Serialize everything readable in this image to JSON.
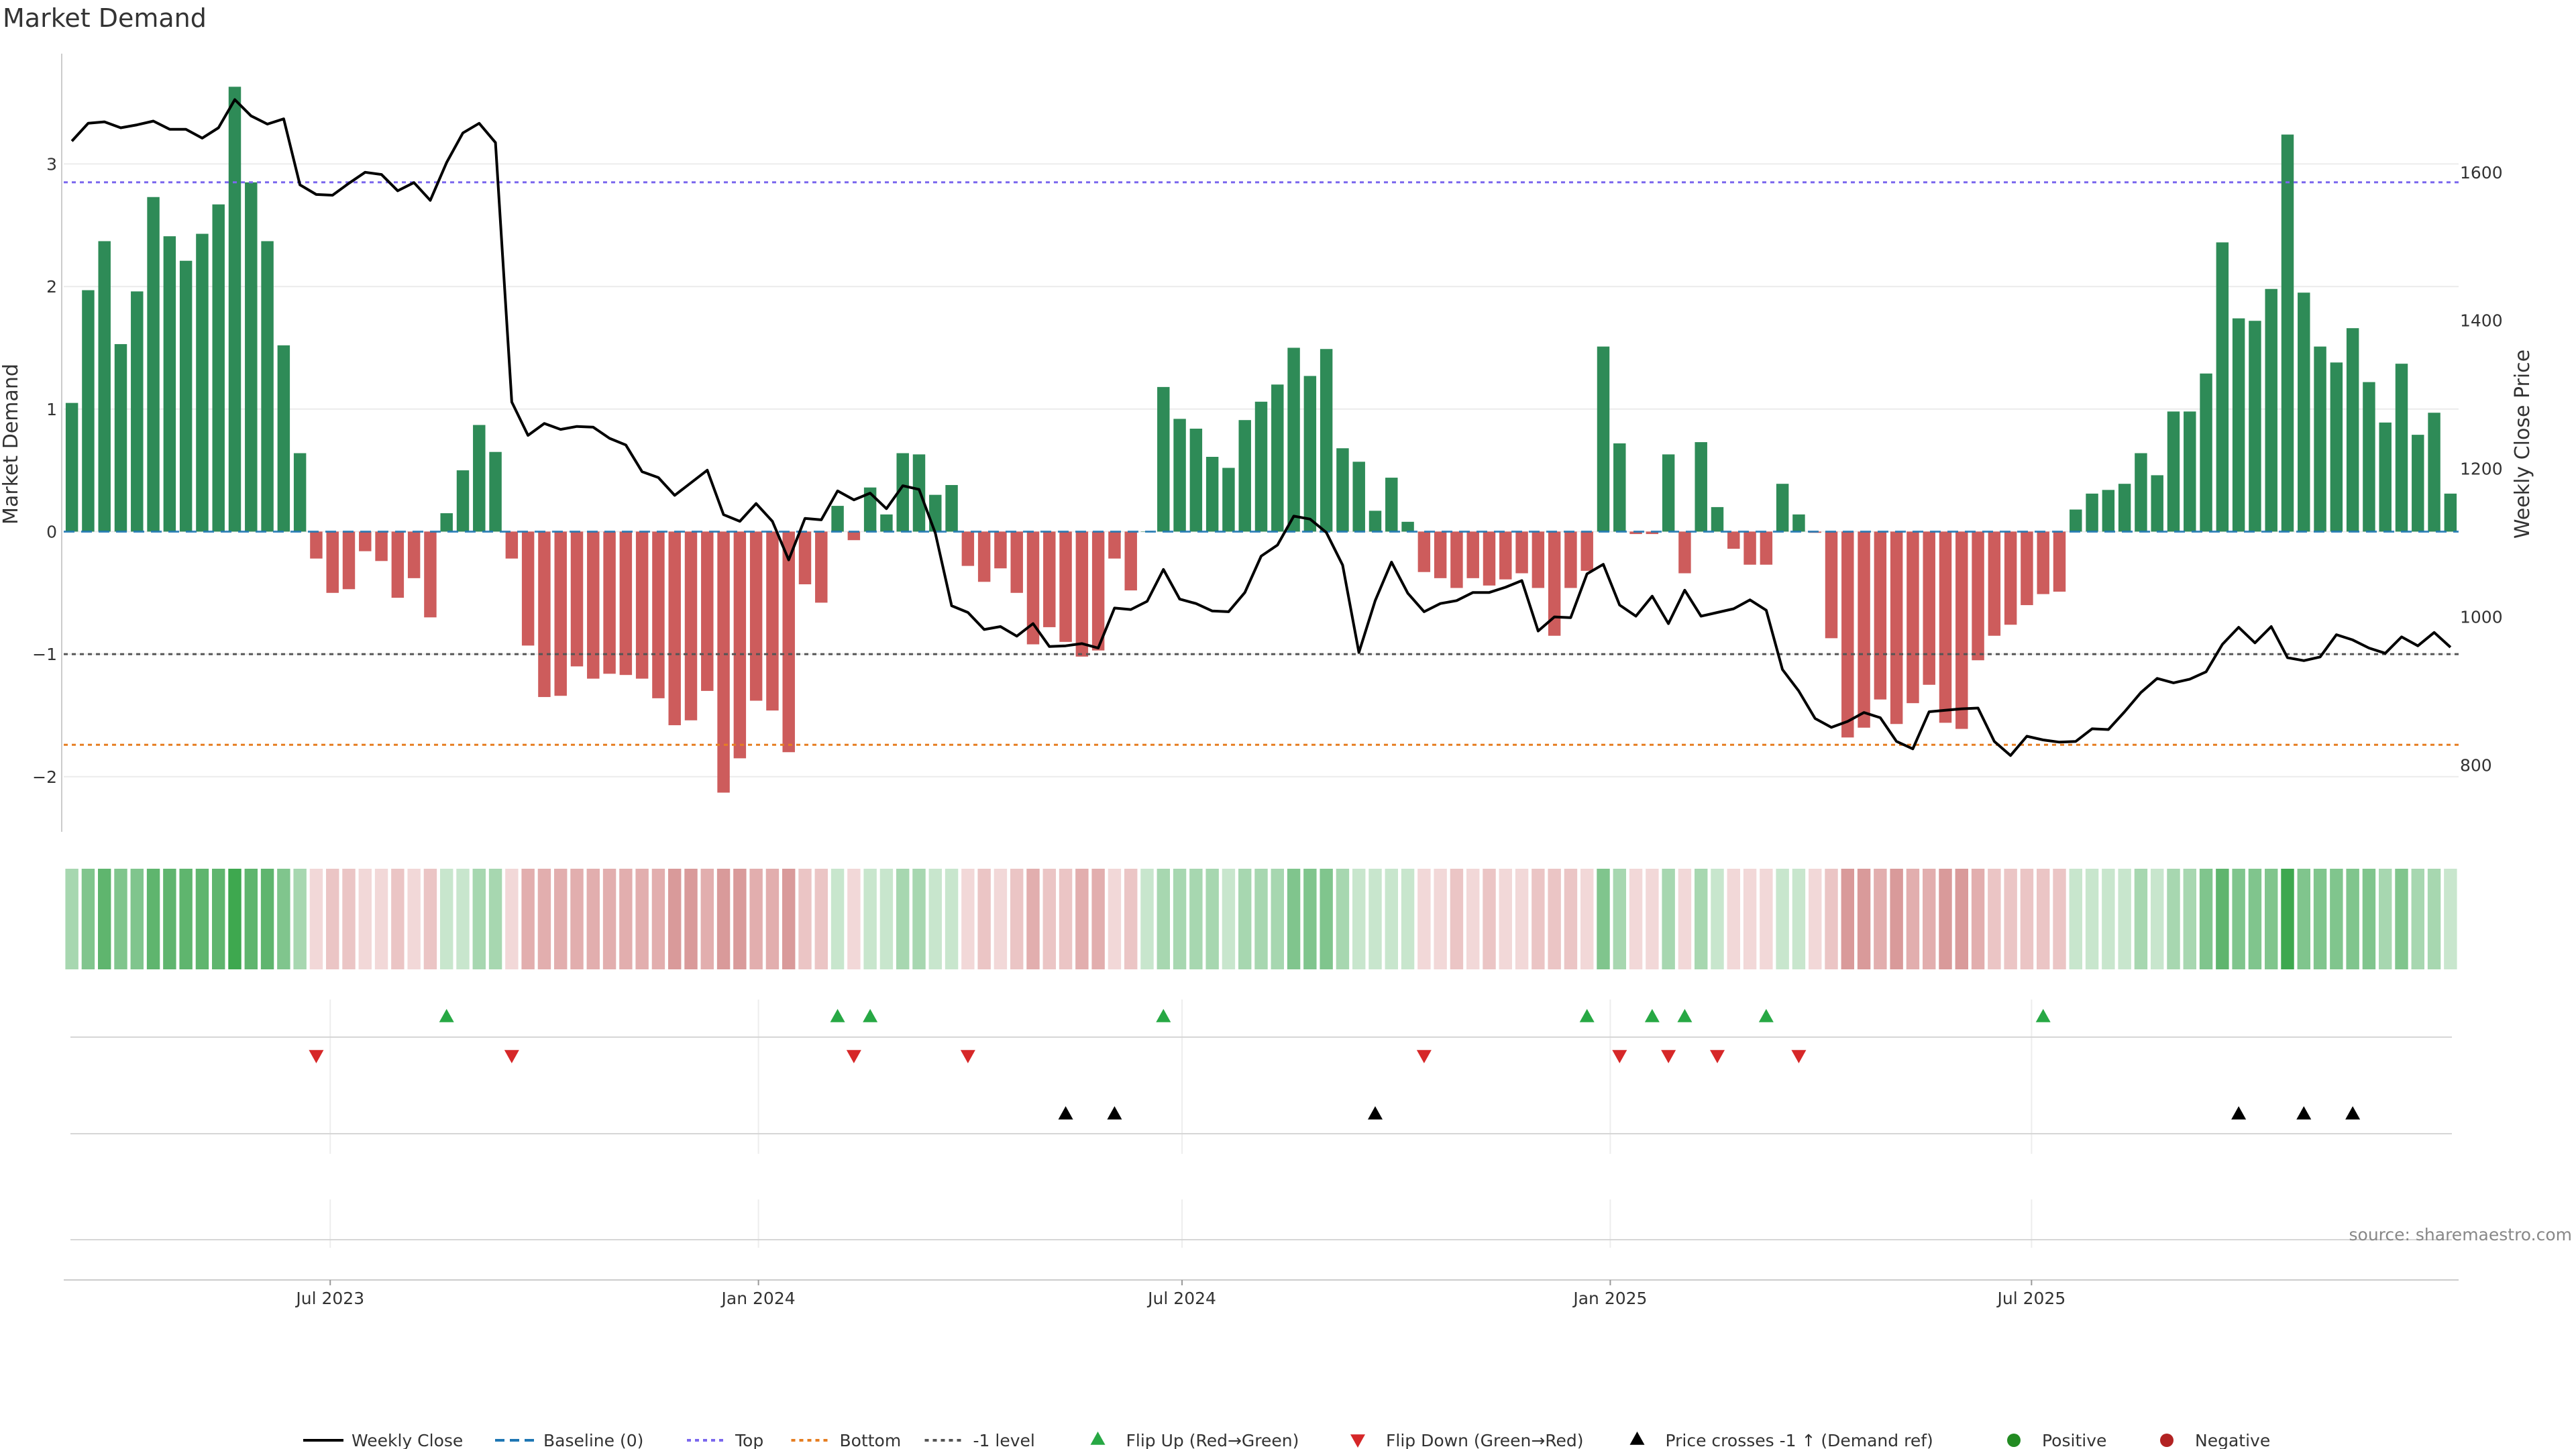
{
  "title": "Market Demand",
  "source": "source: sharemaestro.com",
  "colors": {
    "positive": "#2e8b57",
    "negative": "#cd5c5c",
    "price_line": "#000000",
    "baseline": "#1f77b4",
    "top": "#7b68ee",
    "bottom": "#e67e22",
    "minus_one": "#555555",
    "flip_up": "#27a844",
    "flip_down": "#d62728",
    "price_cross": "#000000",
    "dot_positive": "#228b22",
    "dot_negative": "#b22222"
  },
  "chart_data": {
    "type": "bar",
    "title": "Market Demand",
    "ylabel_left": "Market Demand",
    "ylabel_right": "Weekly Close Price",
    "x_ticks": [
      "Jul 2023",
      "Jan 2024",
      "Jul 2024",
      "Jan 2025",
      "Jul 2025"
    ],
    "y_left_ticks": [
      3,
      2,
      1,
      0,
      -1,
      -2
    ],
    "y_left_tick_labels": [
      "3",
      "2",
      "1",
      "0",
      "−1",
      "−2"
    ],
    "y_right_ticks": [
      1600,
      1400,
      1200,
      1000,
      800
    ],
    "y_left_range": [
      -2.45,
      3.9
    ],
    "y_right_range": [
      710,
      1760
    ],
    "reference_lines": {
      "top": 2.85,
      "bottom": -1.74,
      "minus_one": -1.0,
      "baseline": 0
    },
    "first_week": "2023-03-12",
    "demand": [
      1.05,
      1.97,
      2.37,
      1.53,
      1.96,
      2.73,
      2.41,
      2.21,
      2.43,
      2.67,
      3.63,
      2.85,
      2.37,
      1.52,
      0.64,
      -0.22,
      -0.5,
      -0.47,
      -0.16,
      -0.24,
      -0.54,
      -0.38,
      -0.7,
      0.15,
      0.5,
      0.87,
      0.65,
      -0.22,
      -0.93,
      -1.35,
      -1.34,
      -1.1,
      -1.2,
      -1.16,
      -1.17,
      -1.2,
      -1.36,
      -1.58,
      -1.54,
      -1.3,
      -2.13,
      -1.85,
      -1.38,
      -1.46,
      -1.8,
      -0.43,
      -0.58,
      0.21,
      -0.07,
      0.36,
      0.14,
      0.64,
      0.63,
      0.3,
      0.38,
      -0.28,
      -0.41,
      -0.3,
      -0.5,
      -0.92,
      -0.78,
      -0.9,
      -1.02,
      -0.97,
      -0.22,
      -0.48,
      0.0,
      1.18,
      0.92,
      0.84,
      0.61,
      0.52,
      0.91,
      1.06,
      1.2,
      1.5,
      1.27,
      1.49,
      0.68,
      0.57,
      0.17,
      0.44,
      0.08,
      -0.33,
      -0.38,
      -0.46,
      -0.38,
      -0.44,
      -0.39,
      -0.34,
      -0.46,
      -0.85,
      -0.46,
      -0.32,
      1.51,
      0.72,
      -0.02,
      -0.02,
      0.63,
      -0.34,
      0.73,
      0.2,
      -0.14,
      -0.27,
      -0.27,
      0.39,
      0.14,
      -0.01,
      -0.87,
      -1.68,
      -1.6,
      -1.37,
      -1.57,
      -1.4,
      -1.25,
      -1.56,
      -1.61,
      -1.05,
      -0.85,
      -0.76,
      -0.6,
      -0.51,
      -0.49,
      0.18,
      0.31,
      0.34,
      0.39,
      0.64,
      0.46,
      0.98,
      0.98,
      1.29,
      2.36,
      1.74,
      1.72,
      1.98,
      3.24,
      1.95,
      1.51,
      1.38,
      1.66,
      1.22,
      0.89,
      1.37,
      0.79,
      0.97,
      0.31
    ],
    "weekly_close": [
      1642,
      1666,
      1668,
      1660,
      1664,
      1669,
      1658,
      1658,
      1646,
      1660,
      1698,
      1676,
      1665,
      1672,
      1583,
      1570,
      1569,
      1585,
      1600,
      1597,
      1575,
      1586,
      1562,
      1613,
      1653,
      1666,
      1640,
      1290,
      1245,
      1261,
      1253,
      1257,
      1256,
      1241,
      1232,
      1196,
      1188,
      1164,
      1181,
      1198,
      1138,
      1129,
      1153,
      1129,
      1077,
      1133,
      1131,
      1170,
      1158,
      1167,
      1146,
      1177,
      1172,
      1113,
      1015,
      1006,
      983,
      987,
      974,
      991,
      960,
      961,
      964,
      958,
      1012,
      1010,
      1021,
      1064,
      1024,
      1018,
      1008,
      1007,
      1033,
      1082,
      1097,
      1136,
      1132,
      1114,
      1070,
      952,
      1022,
      1074,
      1032,
      1007,
      1018,
      1022,
      1033,
      1033,
      1040,
      1049,
      981,
      1000,
      999,
      1058,
      1071,
      1016,
      1001,
      1028,
      991,
      1036,
      1001,
      1006,
      1011,
      1023,
      1009,
      929,
      900,
      863,
      851,
      859,
      871,
      864,
      832,
      822,
      872,
      874,
      876,
      877,
      832,
      813,
      839,
      834,
      831,
      832,
      849,
      848,
      872,
      898,
      917,
      911,
      916,
      926,
      963,
      986,
      965,
      987,
      945,
      941,
      946,
      976,
      969,
      958,
      951,
      973,
      961,
      979,
      959
    ]
  },
  "markers": {
    "flip_up_weeks": [
      23,
      47,
      49,
      67,
      93,
      97,
      99,
      104,
      121
    ],
    "flip_down_weeks": [
      15,
      27,
      48,
      55,
      83,
      95,
      98,
      101,
      106
    ],
    "price_cross_weeks": [
      61,
      64,
      80,
      133,
      137,
      140
    ]
  },
  "legend": [
    {
      "label": "Weekly Close",
      "style": "line-solid",
      "color": "#000000"
    },
    {
      "label": "Baseline (0)",
      "style": "line-dashed",
      "color": "#1f77b4"
    },
    {
      "label": "Top",
      "style": "line-dotted",
      "color": "#7b68ee"
    },
    {
      "label": "Bottom",
      "style": "line-dotted",
      "color": "#e67e22"
    },
    {
      "label": "-1 level",
      "style": "line-dotted",
      "color": "#555555"
    },
    {
      "label": "Flip Up (Red→Green)",
      "style": "triangle-up",
      "color": "#27a844"
    },
    {
      "label": "Flip Down (Green→Red)",
      "style": "triangle-down",
      "color": "#d62728"
    },
    {
      "label": "Price crosses -1 ↑ (Demand ref)",
      "style": "triangle-up",
      "color": "#000000"
    },
    {
      "label": "Positive",
      "style": "dot",
      "color": "#228b22"
    },
    {
      "label": "Negative",
      "style": "dot",
      "color": "#b22222"
    }
  ]
}
